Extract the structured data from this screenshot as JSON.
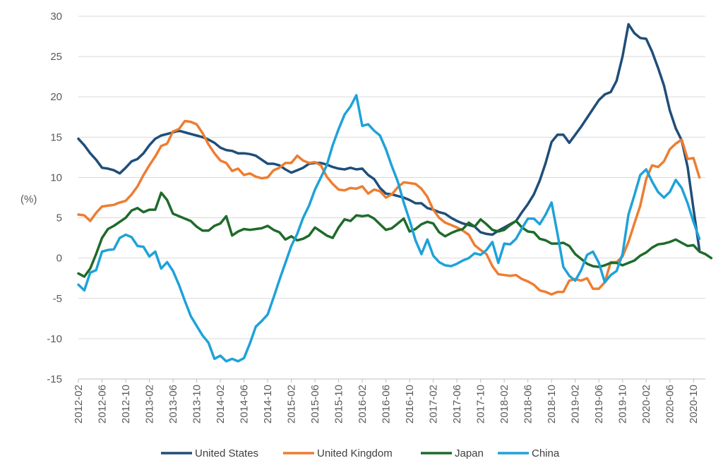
{
  "chart_data": {
    "type": "line",
    "title": "",
    "xlabel": "",
    "ylabel": "(%)",
    "ylim": [
      -15,
      30
    ],
    "yticks": [
      "30",
      "25",
      "20",
      "15",
      "10",
      "5",
      "0",
      "-5",
      "-10",
      "-15"
    ],
    "ytick_values": [
      30,
      25,
      20,
      15,
      10,
      5,
      0,
      -5,
      -10,
      -15
    ],
    "grid": "horizontal",
    "legend": "bottom",
    "x_start": "2012-02",
    "x_end": "2020-12",
    "xtick_labels": [
      "2012-02",
      "2012-06",
      "2012-10",
      "2013-02",
      "2013-06",
      "2013-10",
      "2014-02",
      "2014-06",
      "2014-10",
      "2015-02",
      "2015-06",
      "2015-10",
      "2016-02",
      "2016-06",
      "2016-10",
      "2017-02",
      "2017-06",
      "2017-10",
      "2018-02",
      "2018-06",
      "2018-10",
      "2019-02",
      "2019-06",
      "2019-10",
      "2020-02",
      "2020-06",
      "2020-10"
    ],
    "series": [
      {
        "name": "United States",
        "color": "#1f4e79",
        "values": [
          14.8,
          14.0,
          13.0,
          12.2,
          11.2,
          11.1,
          10.9,
          10.5,
          11.2,
          12.0,
          12.3,
          13.0,
          14.0,
          14.8,
          15.2,
          15.4,
          15.6,
          15.8,
          15.6,
          15.4,
          15.2,
          15.0,
          14.7,
          14.3,
          13.7,
          13.4,
          13.3,
          13.0,
          13.0,
          12.9,
          12.7,
          12.2,
          11.7,
          11.7,
          11.5,
          11.0,
          10.6,
          10.9,
          11.2,
          11.7,
          11.8,
          11.8,
          11.6,
          11.3,
          11.1,
          11.0,
          11.2,
          11.0,
          11.1,
          10.3,
          9.8,
          8.7,
          8.0,
          7.9,
          7.7,
          7.5,
          7.2,
          6.8,
          6.8,
          6.2,
          6.0,
          5.7,
          5.5,
          5.0,
          4.6,
          4.3,
          4.1,
          3.9,
          3.2,
          3.0,
          2.9,
          3.4,
          3.8,
          4.2,
          4.6,
          5.7,
          6.7,
          7.9,
          9.6,
          11.8,
          14.4,
          15.3,
          15.3,
          14.3,
          15.3,
          16.3,
          17.4,
          18.5,
          19.6,
          20.3,
          20.6,
          22.0,
          25.0,
          29.0,
          27.9,
          27.3,
          27.2,
          25.6,
          23.6,
          21.4,
          18.3,
          16.1,
          14.6,
          11.3,
          6.1,
          1.0
        ]
      },
      {
        "name": "United Kingdom",
        "color": "#ed7d31",
        "values": [
          5.4,
          5.3,
          4.6,
          5.6,
          6.4,
          6.5,
          6.6,
          6.9,
          7.1,
          7.9,
          8.9,
          10.3,
          11.5,
          12.6,
          13.9,
          14.2,
          15.7,
          16.0,
          17.0,
          16.9,
          16.6,
          15.5,
          14.1,
          13.0,
          12.1,
          11.8,
          10.8,
          11.1,
          10.3,
          10.5,
          10.1,
          9.9,
          10.0,
          10.9,
          11.2,
          11.8,
          11.8,
          12.7,
          12.1,
          11.8,
          11.9,
          11.5,
          10.1,
          9.2,
          8.5,
          8.4,
          8.7,
          8.6,
          8.9,
          8.0,
          8.5,
          8.3,
          7.5,
          7.9,
          8.8,
          9.4,
          9.3,
          9.2,
          8.6,
          7.6,
          6.0,
          5.0,
          4.4,
          4.1,
          3.8,
          3.4,
          2.9,
          1.6,
          1.0,
          0.5,
          -1.0,
          -2.0,
          -2.1,
          -2.2,
          -2.1,
          -2.6,
          -2.9,
          -3.3,
          -4.0,
          -4.2,
          -4.5,
          -4.2,
          -4.2,
          -2.8,
          -2.6,
          -2.8,
          -2.5,
          -3.8,
          -3.8,
          -3.0,
          -0.5,
          -0.5,
          0.2,
          2.0,
          4.3,
          6.5,
          9.8,
          11.5,
          11.3,
          12.0,
          13.5,
          14.2,
          14.7,
          12.3,
          12.4,
          10.0
        ]
      },
      {
        "name": "Japan",
        "color": "#1e6b2a",
        "values": [
          -1.9,
          -2.3,
          -1.3,
          0.5,
          2.5,
          3.6,
          4.0,
          4.5,
          5.0,
          5.9,
          6.2,
          5.7,
          6.0,
          6.0,
          8.1,
          7.2,
          5.5,
          5.2,
          4.9,
          4.6,
          3.9,
          3.4,
          3.4,
          4.0,
          4.3,
          5.2,
          2.8,
          3.3,
          3.6,
          3.5,
          3.6,
          3.7,
          4.0,
          3.5,
          3.2,
          2.3,
          2.7,
          2.2,
          2.4,
          2.8,
          3.8,
          3.3,
          2.8,
          2.5,
          3.8,
          4.8,
          4.6,
          5.3,
          5.2,
          5.3,
          4.9,
          4.2,
          3.5,
          3.7,
          4.3,
          4.9,
          3.3,
          3.6,
          4.2,
          4.5,
          4.3,
          3.2,
          2.7,
          3.1,
          3.4,
          3.6,
          4.4,
          3.9,
          4.8,
          4.2,
          3.5,
          3.3,
          3.5,
          4.1,
          4.6,
          3.8,
          3.3,
          3.2,
          2.4,
          2.2,
          1.8,
          1.8,
          1.9,
          1.5,
          0.5,
          -0.1,
          -0.7,
          -1.0,
          -1.1,
          -0.9,
          -0.6,
          -0.6,
          -0.9,
          -0.6,
          -0.3,
          0.3,
          0.7,
          1.3,
          1.7,
          1.8,
          2.0,
          2.3,
          1.9,
          1.5,
          1.6,
          0.8,
          0.5,
          0.0
        ]
      },
      {
        "name": "China",
        "color": "#1ea2d9",
        "values": [
          -3.3,
          -4.0,
          -1.8,
          -1.5,
          0.8,
          1.0,
          1.1,
          2.5,
          2.9,
          2.6,
          1.5,
          1.4,
          0.2,
          0.8,
          -1.3,
          -0.5,
          -1.6,
          -3.3,
          -5.3,
          -7.2,
          -8.4,
          -9.6,
          -10.5,
          -12.5,
          -12.1,
          -12.8,
          -12.5,
          -12.8,
          -12.4,
          -10.6,
          -8.5,
          -7.8,
          -7.0,
          -4.9,
          -2.7,
          -0.6,
          1.5,
          3.0,
          5.0,
          6.5,
          8.5,
          10.0,
          11.5,
          14.0,
          16.0,
          17.8,
          18.8,
          20.2,
          16.4,
          16.6,
          15.8,
          15.2,
          13.5,
          11.4,
          9.5,
          6.9,
          4.7,
          2.2,
          0.5,
          2.3,
          0.3,
          -0.5,
          -0.9,
          -1.0,
          -0.7,
          -0.3,
          0.0,
          0.6,
          0.4,
          1.0,
          2.0,
          -0.6,
          1.8,
          1.7,
          2.4,
          3.7,
          4.9,
          4.9,
          4.2,
          5.4,
          6.9,
          3.0,
          -1.1,
          -2.2,
          -2.8,
          -1.5,
          0.4,
          0.8,
          -0.6,
          -3.0,
          -2.1,
          -1.6,
          0.5,
          5.4,
          7.8,
          10.3,
          11.0,
          9.5,
          8.2,
          7.5,
          8.2,
          9.7,
          8.7,
          6.8,
          4.5,
          2.4
        ]
      }
    ]
  }
}
